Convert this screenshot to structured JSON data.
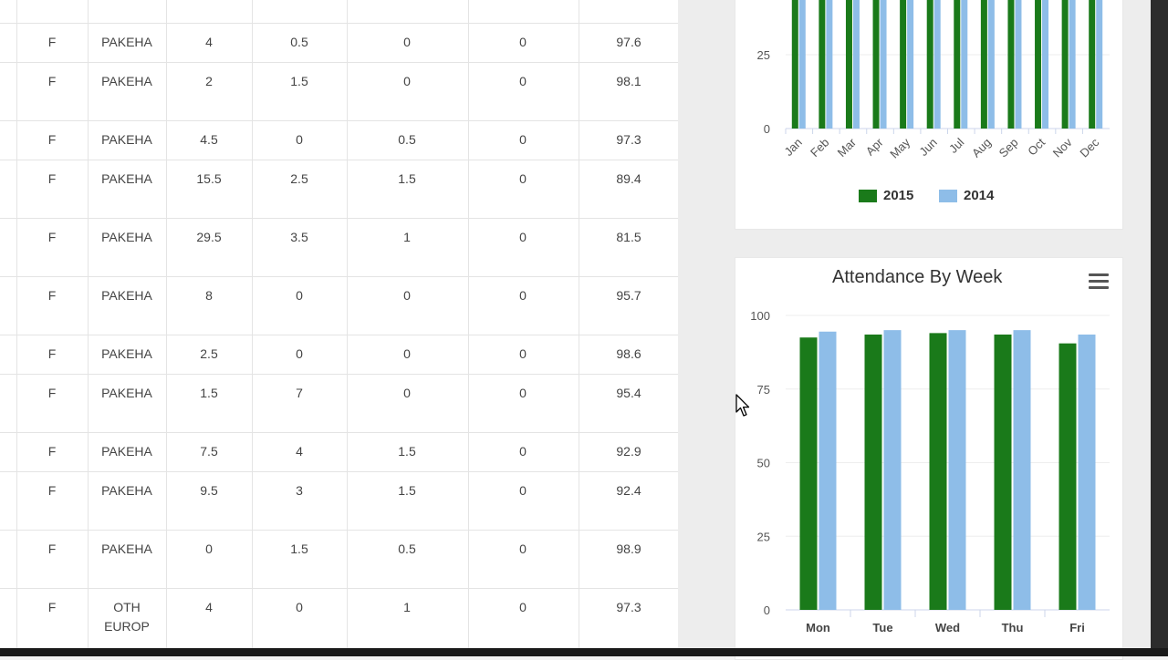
{
  "table": {
    "rows": [
      {
        "gender": "F",
        "ethnicity": "PAKEHA",
        "c1": "4",
        "c2": "0.5",
        "c3": "0",
        "c4": "0",
        "pct": "97.6"
      },
      {
        "gender": "F",
        "ethnicity": "PAKEHA",
        "c1": "2",
        "c2": "1.5",
        "c3": "0",
        "c4": "0",
        "pct": "98.1"
      },
      {
        "gender": "F",
        "ethnicity": "PAKEHA",
        "c1": "4.5",
        "c2": "0",
        "c3": "0.5",
        "c4": "0",
        "pct": "97.3"
      },
      {
        "gender": "F",
        "ethnicity": "PAKEHA",
        "c1": "15.5",
        "c2": "2.5",
        "c3": "1.5",
        "c4": "0",
        "pct": "89.4"
      },
      {
        "gender": "F",
        "ethnicity": "PAKEHA",
        "c1": "29.5",
        "c2": "3.5",
        "c3": "1",
        "c4": "0",
        "pct": "81.5"
      },
      {
        "gender": "F",
        "ethnicity": "PAKEHA",
        "c1": "8",
        "c2": "0",
        "c3": "0",
        "c4": "0",
        "pct": "95.7"
      },
      {
        "gender": "F",
        "ethnicity": "PAKEHA",
        "c1": "2.5",
        "c2": "0",
        "c3": "0",
        "c4": "0",
        "pct": "98.6"
      },
      {
        "gender": "F",
        "ethnicity": "PAKEHA",
        "c1": "1.5",
        "c2": "7",
        "c3": "0",
        "c4": "0",
        "pct": "95.4"
      },
      {
        "gender": "F",
        "ethnicity": "PAKEHA",
        "c1": "7.5",
        "c2": "4",
        "c3": "1.5",
        "c4": "0",
        "pct": "92.9"
      },
      {
        "gender": "F",
        "ethnicity": "PAKEHA",
        "c1": "9.5",
        "c2": "3",
        "c3": "1.5",
        "c4": "0",
        "pct": "92.4"
      },
      {
        "gender": "F",
        "ethnicity": "PAKEHA",
        "c1": "0",
        "c2": "1.5",
        "c3": "0.5",
        "c4": "0",
        "pct": "98.9"
      },
      {
        "gender": "F",
        "ethnicity": "OTH EUROP",
        "c1": "4",
        "c2": "0",
        "c3": "1",
        "c4": "0",
        "pct": "97.3"
      }
    ]
  },
  "colors": {
    "series_2015": "#1a7a1a",
    "series_2014": "#8ebde8"
  },
  "icons": {
    "menu": "hamburger-menu-icon",
    "cursor": "mouse-pointer-icon"
  },
  "chart_data": [
    {
      "type": "bar",
      "title": "",
      "categories": [
        "Jan",
        "Feb",
        "Mar",
        "Apr",
        "May",
        "Jun",
        "Jul",
        "Aug",
        "Sep",
        "Oct",
        "Nov",
        "Dec"
      ],
      "y_ticks": [
        "0",
        "25"
      ],
      "visible_ylim": [
        0,
        44
      ],
      "series": [
        {
          "name": "2015",
          "values": [
            95,
            95,
            95,
            95,
            95,
            95,
            95,
            95,
            95,
            95,
            95,
            95
          ]
        },
        {
          "name": "2014",
          "values": [
            95,
            95,
            95,
            95,
            95,
            95,
            95,
            95,
            95,
            95,
            95,
            95
          ]
        }
      ],
      "legend_position": "bottom"
    },
    {
      "type": "bar",
      "title": "Attendance By Week",
      "categories": [
        "Mon",
        "Tue",
        "Wed",
        "Thu",
        "Fri"
      ],
      "y_ticks": [
        "0",
        "25",
        "50",
        "75",
        "100"
      ],
      "ylim": [
        0,
        100
      ],
      "series": [
        {
          "name": "2015",
          "values": [
            92.5,
            93.5,
            94,
            93.5,
            90.5
          ]
        },
        {
          "name": "2014",
          "values": [
            94.5,
            95,
            95,
            95,
            93.5
          ]
        }
      ],
      "legend_position": "bottom"
    }
  ]
}
